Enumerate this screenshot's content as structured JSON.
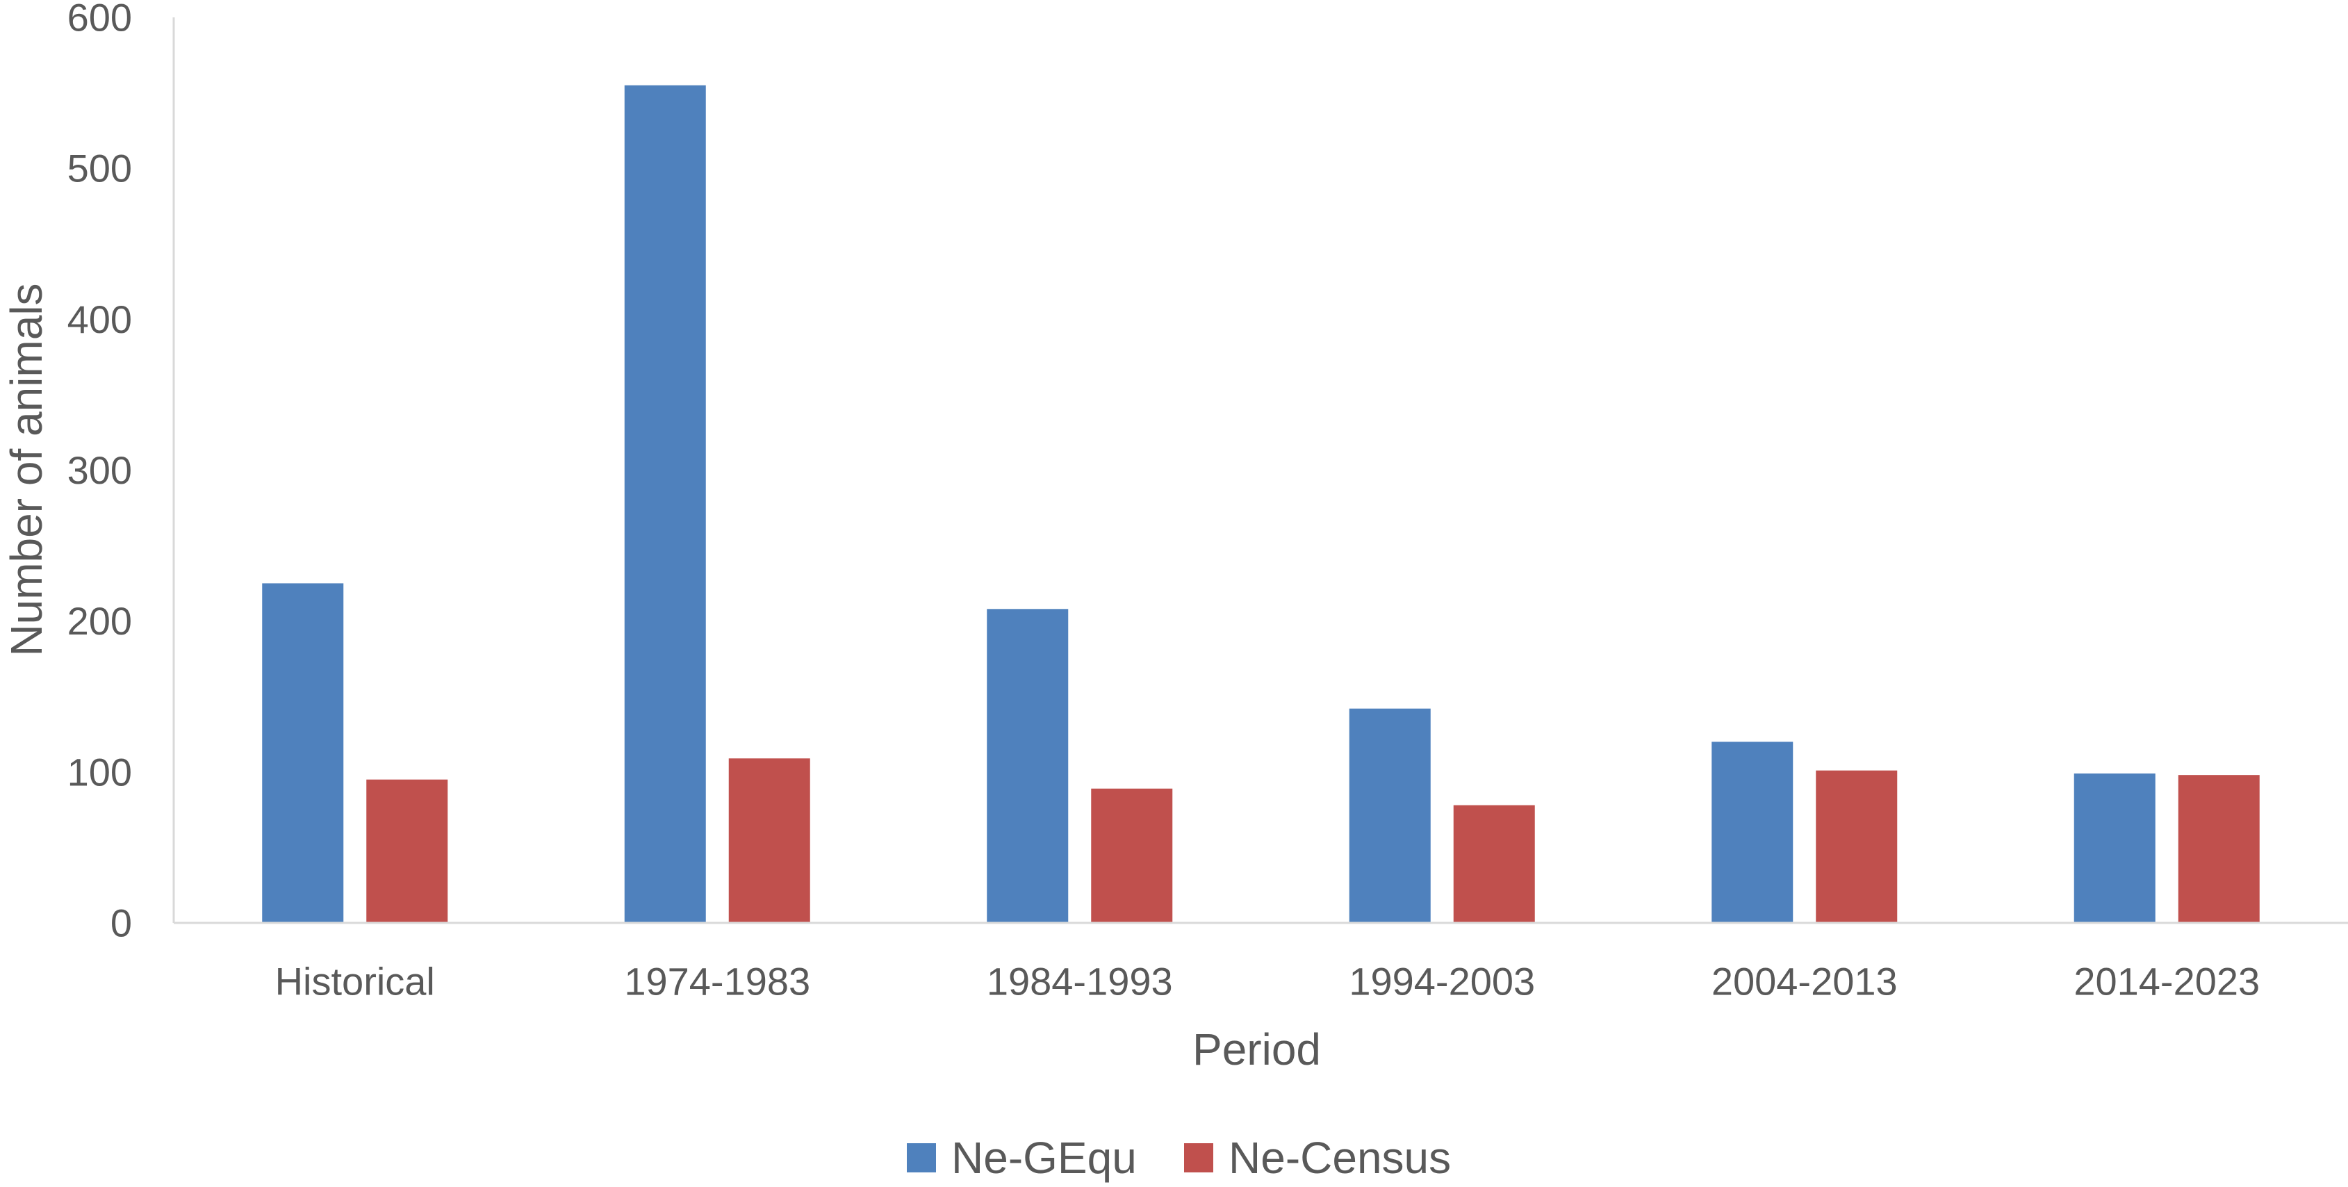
{
  "chart_data": {
    "type": "bar",
    "title": "",
    "xlabel": "Period",
    "ylabel": "Number of animals",
    "ylim": [
      0,
      600
    ],
    "yticks": [
      0,
      100,
      200,
      300,
      400,
      500,
      600
    ],
    "grid": false,
    "legend_position": "bottom",
    "categories": [
      "Historical",
      "1974-1983",
      "1984-1993",
      "1994-2003",
      "2004-2013",
      "2014-2023"
    ],
    "series": [
      {
        "name": "Ne-GEqu",
        "color": "#4F81BD",
        "values": [
          225,
          555,
          208,
          142,
          120,
          99
        ]
      },
      {
        "name": "Ne-Census",
        "color": "#C0504D",
        "values": [
          95,
          109,
          89,
          78,
          101,
          98
        ]
      }
    ]
  }
}
